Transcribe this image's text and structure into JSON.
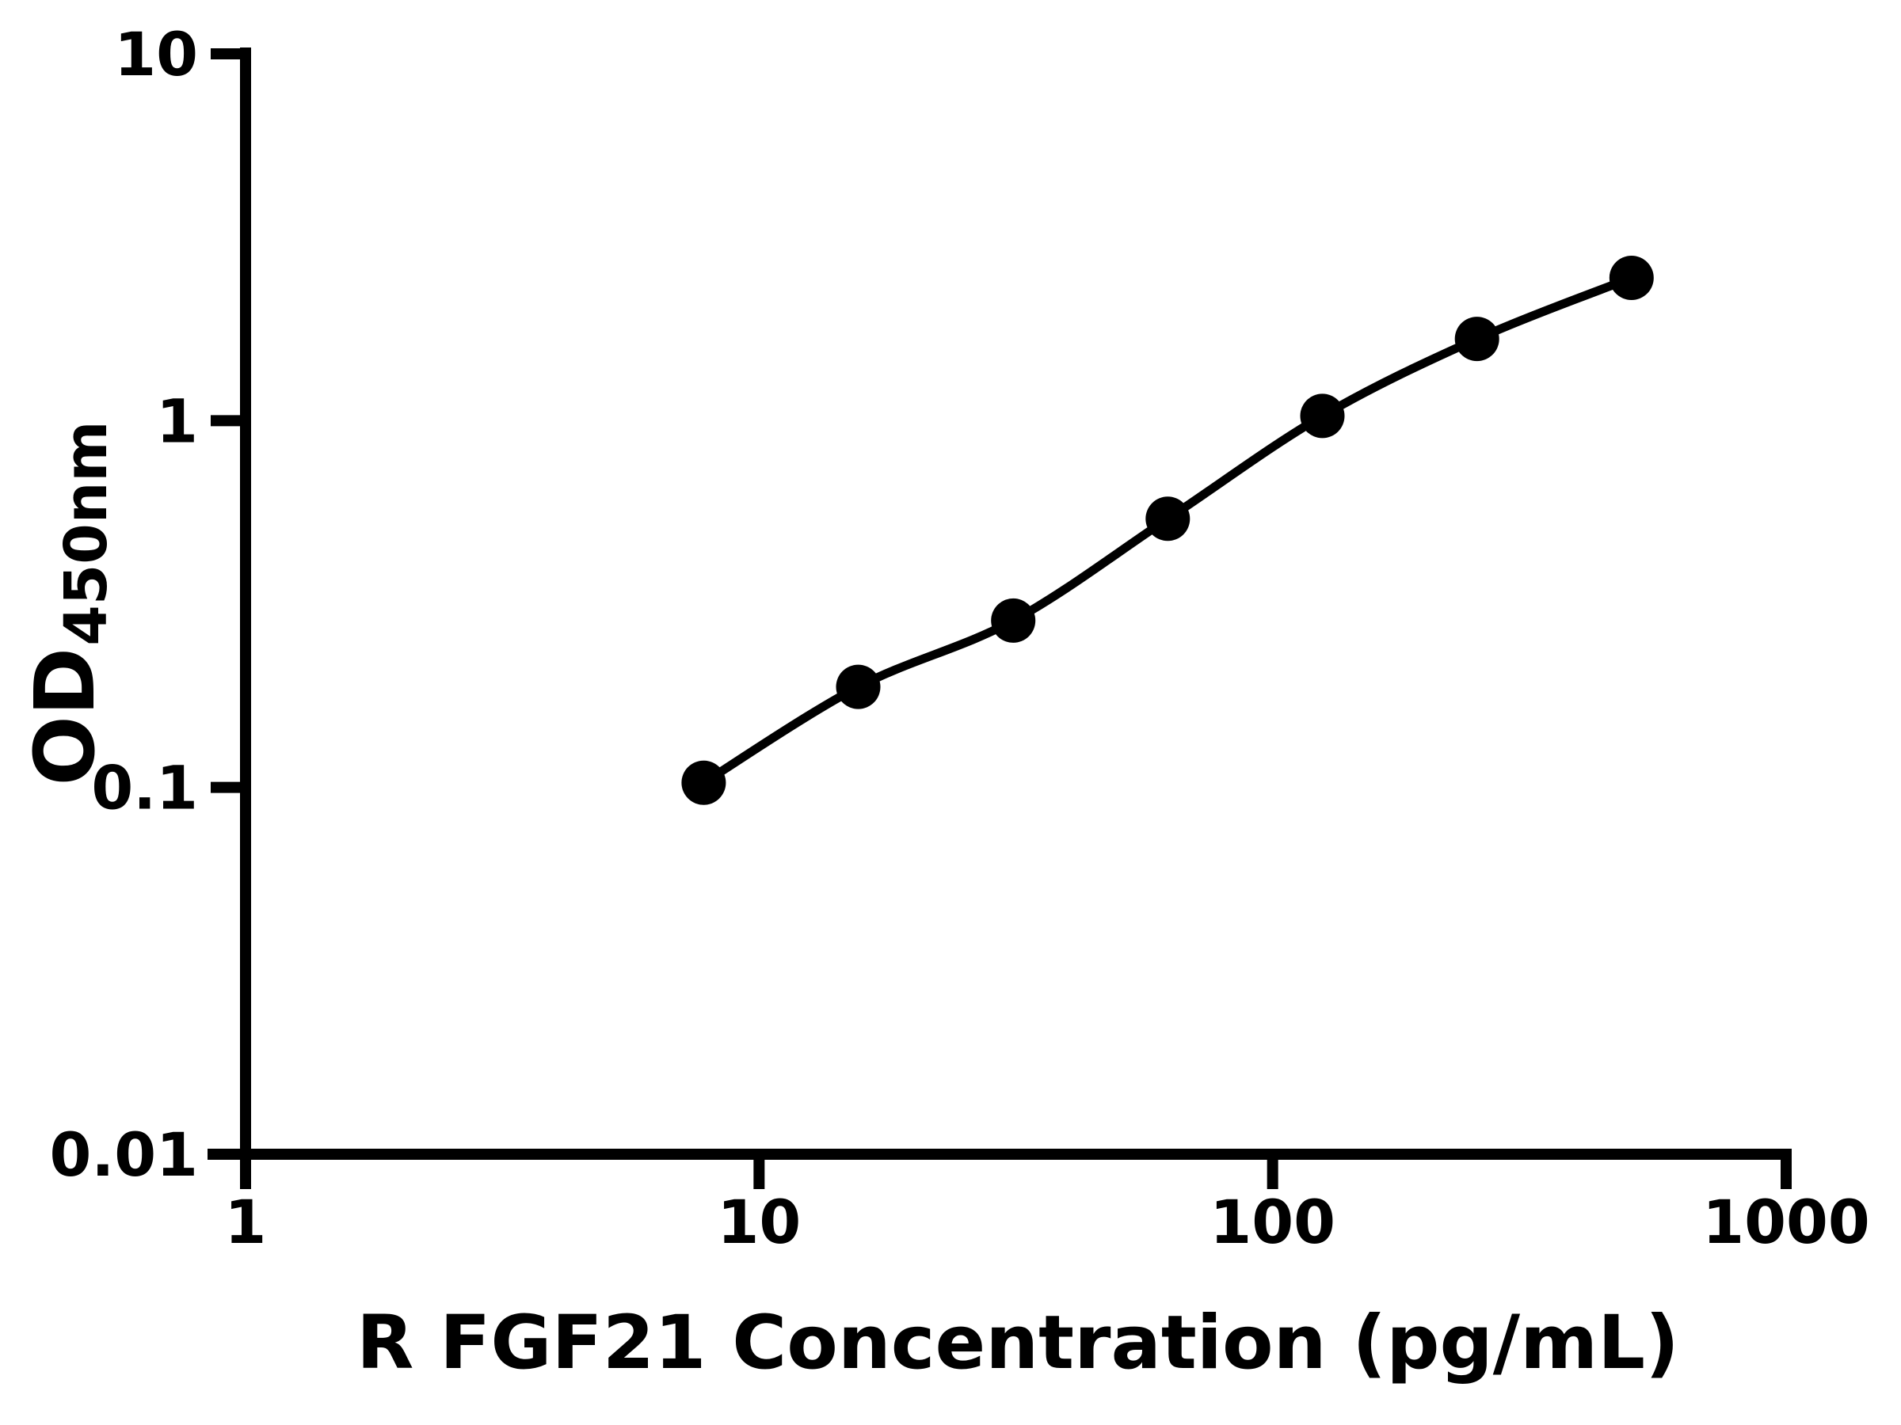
{
  "figure": {
    "background_color": "#ffffff",
    "ink_color": "#000000"
  },
  "chart_data": {
    "type": "scatter",
    "subtype": "standard-curve-with-smooth-line",
    "title": "",
    "xlabel": "R FGF21 Concentration (pg/mL)",
    "ylabel_main": "OD",
    "ylabel_sub": "450nm",
    "x_scale": "log",
    "y_scale": "log",
    "xlim": [
      1,
      1000
    ],
    "ylim": [
      0.01,
      10
    ],
    "x_ticks": [
      1,
      10,
      100,
      1000
    ],
    "x_tick_labels": [
      "1",
      "10",
      "100",
      "1000"
    ],
    "y_ticks": [
      10,
      1,
      0.1,
      0.01
    ],
    "y_tick_labels": [
      "10",
      "1",
      "0.1",
      "0.01"
    ],
    "grid": false,
    "legend_position": "none",
    "series": [
      {
        "name": "standard_curve",
        "marker": "filled-circle",
        "marker_color": "#000000",
        "line_color": "#000000",
        "line_style": "smooth",
        "x": [
          7.8,
          15.6,
          31.25,
          62.5,
          125,
          250,
          500
        ],
        "y": [
          0.103,
          0.188,
          0.285,
          0.54,
          1.03,
          1.67,
          2.45
        ]
      }
    ]
  }
}
